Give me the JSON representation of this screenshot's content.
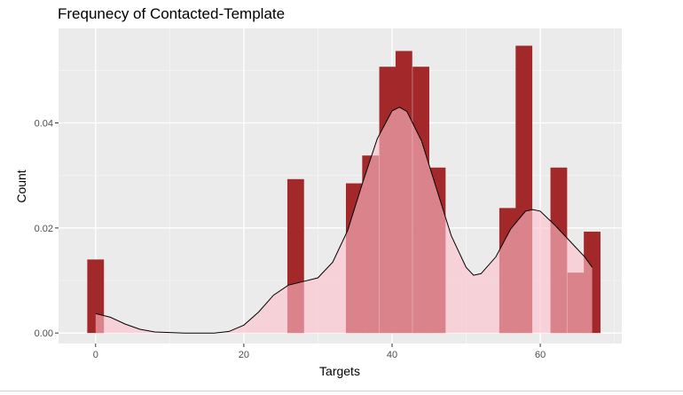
{
  "chart_data": {
    "type": "histogram",
    "title": "Frequnecy of Contacted-Template",
    "xlabel": "Targets",
    "ylabel": "Count",
    "xlim": [
      -5,
      71
    ],
    "ylim": [
      -0.002,
      0.058
    ],
    "x_ticks": [
      0,
      20,
      40,
      60
    ],
    "x_tick_labels": [
      "0",
      "20",
      "40",
      "60"
    ],
    "y_ticks": [
      0.0,
      0.02,
      0.04
    ],
    "y_tick_labels": [
      "0.00",
      "0.02",
      "0.04"
    ],
    "bin_width": 2.25,
    "bins": [
      {
        "x": 0.0,
        "value": 0.014
      },
      {
        "x": 27.0,
        "value": 0.0293
      },
      {
        "x": 34.9,
        "value": 0.0285
      },
      {
        "x": 37.1,
        "value": 0.0338
      },
      {
        "x": 39.4,
        "value": 0.0507
      },
      {
        "x": 41.6,
        "value": 0.0537
      },
      {
        "x": 43.9,
        "value": 0.0507
      },
      {
        "x": 46.1,
        "value": 0.0315
      },
      {
        "x": 55.6,
        "value": 0.0238
      },
      {
        "x": 57.8,
        "value": 0.0547
      },
      {
        "x": 62.5,
        "value": 0.0315
      },
      {
        "x": 64.8,
        "value": 0.0115
      },
      {
        "x": 67.0,
        "value": 0.0193
      }
    ],
    "density": {
      "x": [
        0,
        2,
        4,
        6,
        8,
        10,
        12,
        14,
        16,
        18,
        20,
        22,
        24,
        26,
        28,
        30,
        32,
        34,
        36,
        38,
        40,
        41,
        42,
        44,
        46,
        48,
        50,
        51,
        52,
        54,
        56,
        58,
        59,
        60,
        62,
        64,
        66,
        67
      ],
      "y": [
        0.0037,
        0.003,
        0.0017,
        0.0007,
        0.0002,
        0.0001,
        0.0,
        0.0,
        0.0,
        0.0003,
        0.0015,
        0.004,
        0.0072,
        0.0091,
        0.0098,
        0.0105,
        0.0135,
        0.0195,
        0.0285,
        0.037,
        0.0423,
        0.043,
        0.0422,
        0.0365,
        0.0275,
        0.0185,
        0.0125,
        0.011,
        0.0113,
        0.0145,
        0.0198,
        0.0232,
        0.0235,
        0.0232,
        0.0205,
        0.0175,
        0.0145,
        0.0125
      ]
    },
    "grid": true,
    "legend": "none",
    "colors": {
      "panel_background": "#ebebeb",
      "grid_major": "#ffffff",
      "bar_fill": "#a3282a",
      "density_fill": "#ffc0cb",
      "density_line": "#000000"
    }
  }
}
